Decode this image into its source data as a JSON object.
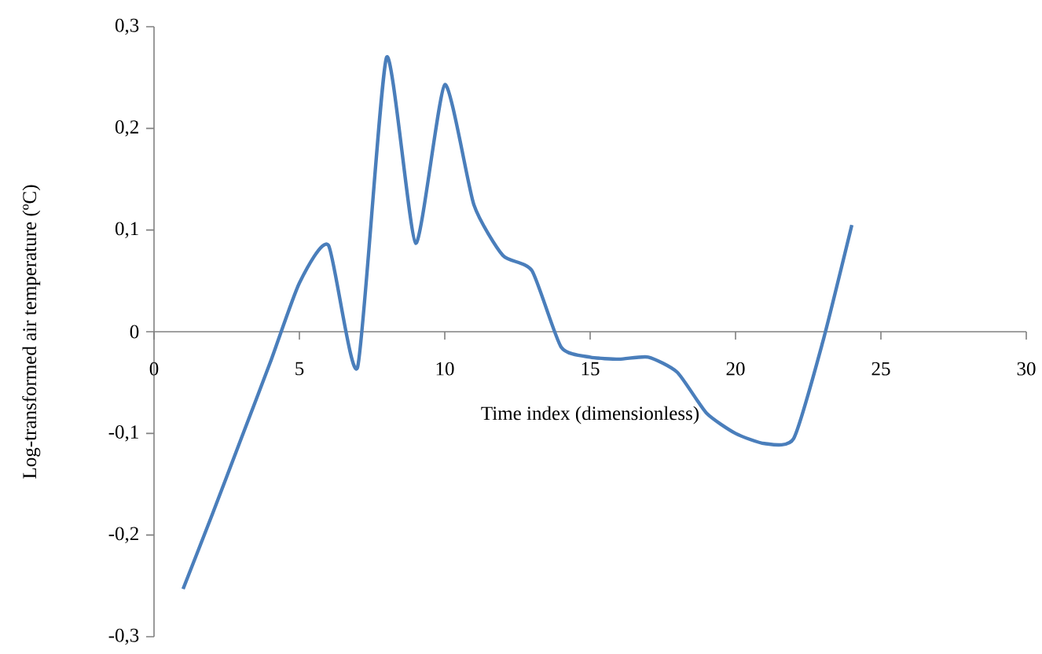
{
  "chart_data": {
    "type": "line",
    "xlabel": "Time index (dimensionless)",
    "ylabel": "Log-transformed air temperature (ºC)",
    "x": [
      1,
      2,
      3,
      4,
      5,
      6,
      7,
      8,
      9,
      10,
      11,
      12,
      13,
      14,
      15,
      16,
      17,
      18,
      19,
      20,
      21,
      22,
      23,
      24
    ],
    "series": [
      {
        "color": "#4a7ebb",
        "values": [
          -0.253,
          -0.18,
          -0.105,
          -0.03,
          0.048,
          0.085,
          -0.035,
          0.27,
          0.087,
          0.243,
          0.125,
          0.075,
          0.06,
          -0.015,
          -0.025,
          -0.027,
          -0.025,
          -0.04,
          -0.08,
          -0.1,
          -0.11,
          -0.105,
          -0.01,
          0.105
        ]
      }
    ],
    "xlim": [
      0,
      30
    ],
    "xticks": [
      0,
      5,
      10,
      15,
      20,
      25,
      30
    ],
    "ylim": [
      -0.3,
      0.3
    ],
    "yticks": [
      {
        "value": -0.3,
        "label": "-0,3"
      },
      {
        "value": -0.2,
        "label": "-0,2"
      },
      {
        "value": -0.1,
        "label": "-0,1"
      },
      {
        "value": 0,
        "label": "0"
      },
      {
        "value": 0.1,
        "label": "0,1"
      },
      {
        "value": 0.2,
        "label": "0,2"
      },
      {
        "value": 0.3,
        "label": "0,3"
      }
    ],
    "grid": false,
    "marker": "none",
    "line_style": "solid"
  }
}
